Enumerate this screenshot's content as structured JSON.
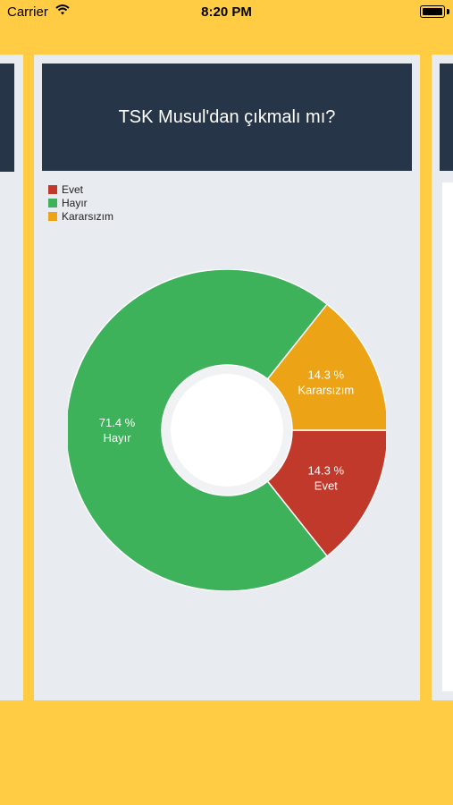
{
  "status_bar": {
    "carrier": "Carrier",
    "time": "8:20 PM"
  },
  "poll": {
    "title": "TSK Musul'dan çıkmalı mı?"
  },
  "colors": {
    "header": "#263548",
    "background": "#ffcc44",
    "card": "#e8ebef"
  },
  "chart_data": {
    "type": "pie",
    "variant": "donut",
    "legend_position": "top-left",
    "series": [
      {
        "name": "Evet",
        "value": 14.3,
        "label": "14.3 %",
        "color": "#c1392b"
      },
      {
        "name": "Hayır",
        "value": 71.4,
        "label": "71.4 %",
        "color": "#3eb15b"
      },
      {
        "name": "Kararsızım",
        "value": 14.3,
        "label": "14.3 %",
        "color": "#eda316"
      }
    ]
  }
}
